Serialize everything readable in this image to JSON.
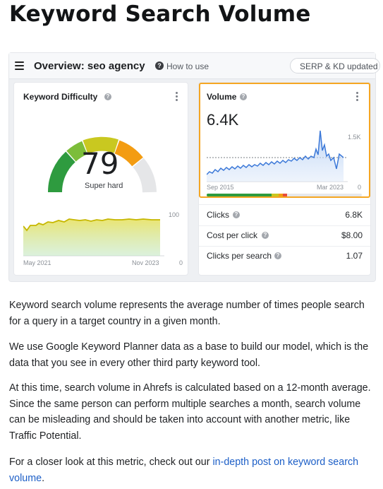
{
  "heading": "Keyword Search Volume",
  "screenshot": {
    "topbar": {
      "title": "Overview: seo agency",
      "how_to_use": "How to use",
      "serp_pill": "SERP & KD updated"
    },
    "kd_card": {
      "title": "Keyword Difficulty",
      "value": "79",
      "label": "Super hard",
      "chart": {
        "x_start": "May 2021",
        "x_end": "Nov 2023",
        "y_max": "100",
        "y_min": "0"
      }
    },
    "volume_card": {
      "title": "Volume",
      "value": "6.4K",
      "chart": {
        "x_start": "Sep 2015",
        "x_end": "Mar 2023",
        "y_max": "1.5K",
        "y_min": "0"
      },
      "metrics": [
        {
          "label": "Clicks",
          "value": "6.8K",
          "help": true
        },
        {
          "label": "Cost per click",
          "value": "$8.00",
          "help": true
        },
        {
          "label": "Clicks per search",
          "value": "1.07",
          "help": true
        }
      ]
    },
    "colors": {
      "highlight": "#f5a623",
      "gauge_green": "#2e9b3f",
      "gauge_orange": "#f39c12",
      "line_blue": "#3b78d8"
    }
  },
  "paragraphs": {
    "p1": "Keyword search volume represents the average number of times people search for a query in a target country in a given month.",
    "p2": "We use Google Keyword Planner data as a base to build our model, which is the data that you see in every other third party keyword tool.",
    "p3": "At this time, search volume in Ahrefs is calculated based on a 12-month average. Since the same person can perform multiple searches a month, search volume can be misleading and should be taken into account with another metric, like Traffic Potential.",
    "p4_prefix": "For a closer look at this metric, check out our ",
    "p4_link": "in-depth post on keyword search volume",
    "p4_suffix": "."
  }
}
